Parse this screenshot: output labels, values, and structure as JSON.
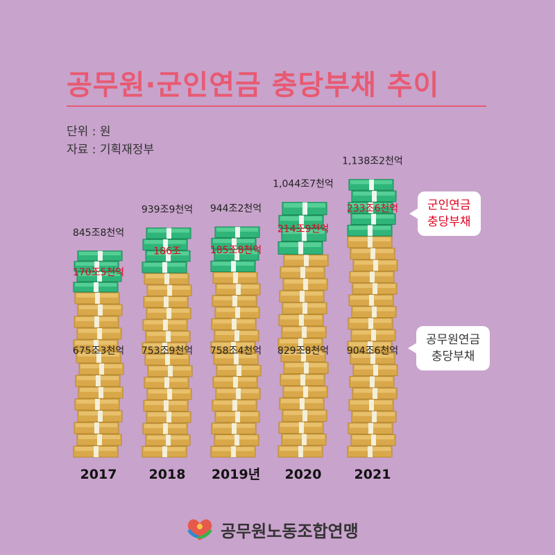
{
  "title": "공무원·군인연금 충당부채 추이",
  "unit_label": "단위 : 원",
  "source_label": "자료 : 기획재정부",
  "colors": {
    "background": "#c8a3cc",
    "title": "#e85a72",
    "military": "#2fb57a",
    "civil": "#d9a84a",
    "military_label": "#e0001e"
  },
  "chart_data": {
    "type": "bar",
    "stacked": true,
    "categories": [
      "2017",
      "2018",
      "2019년",
      "2020",
      "2021"
    ],
    "series": [
      {
        "name": "공무원연금 충당부채",
        "values": [
          675.3,
          753.9,
          758.4,
          829.8,
          904.6
        ],
        "labels": [
          "675조3천억",
          "753조9천억",
          "758조4천억",
          "829조8천억",
          "904조6천억"
        ]
      },
      {
        "name": "군인연금 충당부채",
        "values": [
          170.5,
          186.0,
          185.8,
          214.9,
          233.6
        ],
        "labels": [
          "170조5천억",
          "186조",
          "185조8천억",
          "214조9천억",
          "233조6천억"
        ]
      }
    ],
    "totals": [
      845.8,
      939.9,
      944.2,
      1044.7,
      1138.2
    ],
    "total_labels": [
      "845조8천억",
      "939조9천억",
      "944조2천억",
      "1,044조7천억",
      "1,138조2천억"
    ]
  },
  "callouts": {
    "military": "군인연금\n충당부채",
    "civil": "공무원연금\n충당부채"
  },
  "footer": {
    "org": "공무원노동조합연맹",
    "logo_icon": "heart-hands-icon"
  }
}
